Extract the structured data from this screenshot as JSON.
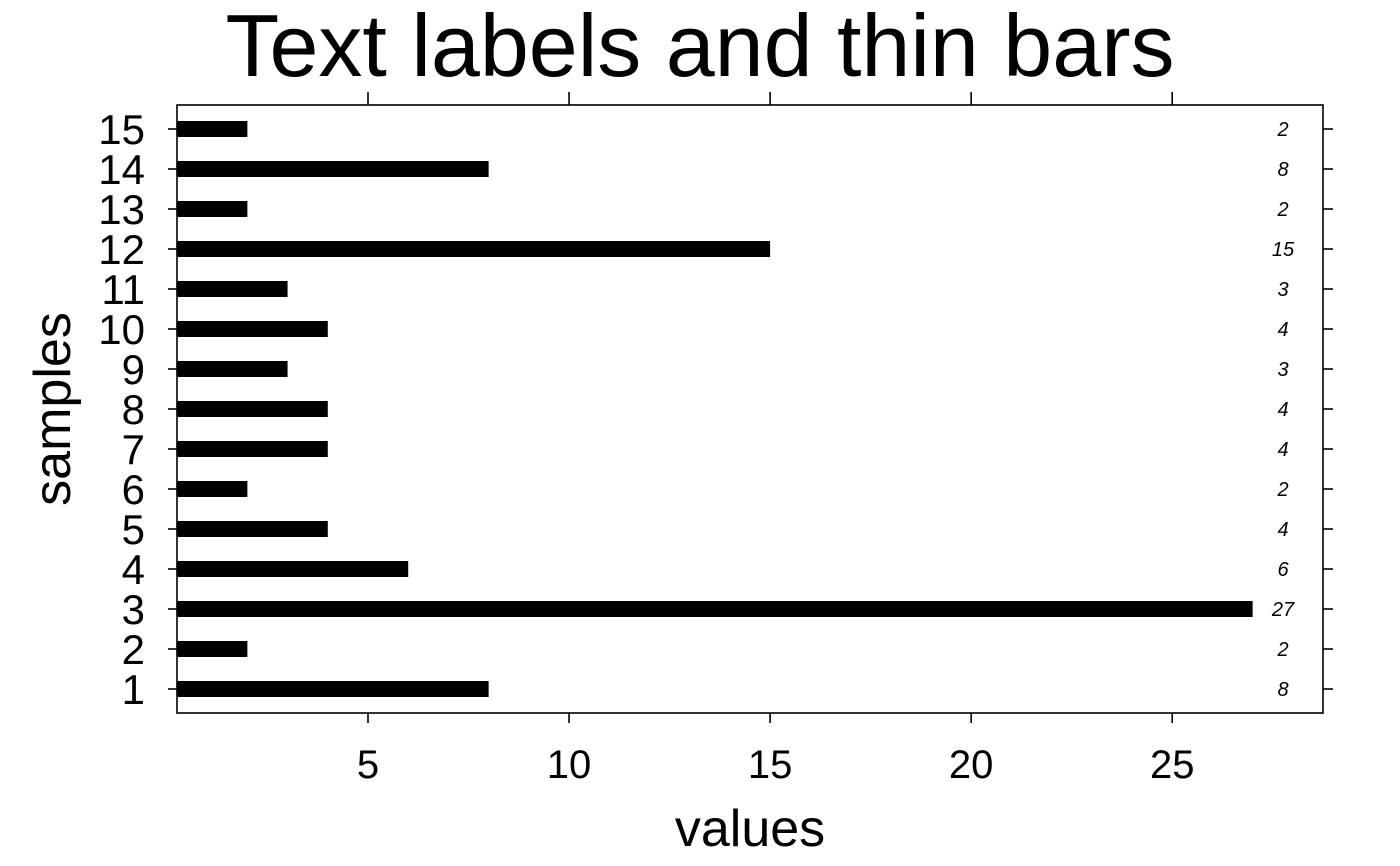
{
  "chart_data": {
    "type": "bar",
    "orientation": "horizontal",
    "title": "Text labels and thin bars",
    "xlabel": "values",
    "ylabel": "samples",
    "categories": [
      "1",
      "2",
      "3",
      "4",
      "5",
      "6",
      "7",
      "8",
      "9",
      "10",
      "11",
      "12",
      "13",
      "14",
      "15"
    ],
    "values": [
      8,
      2,
      27,
      6,
      4,
      2,
      4,
      4,
      3,
      4,
      3,
      15,
      2,
      8,
      2
    ],
    "data_labels": [
      "8",
      "2",
      "27",
      "6",
      "4",
      "2",
      "4",
      "4",
      "3",
      "4",
      "3",
      "15",
      "2",
      "8",
      "2"
    ],
    "x_ticks": [
      5,
      10,
      15,
      20,
      25
    ],
    "x_tick_labels": [
      "5",
      "10",
      "15",
      "20",
      "25"
    ],
    "xlim": [
      0.25,
      28.75
    ],
    "grid": false,
    "bar_color": "#000000"
  }
}
